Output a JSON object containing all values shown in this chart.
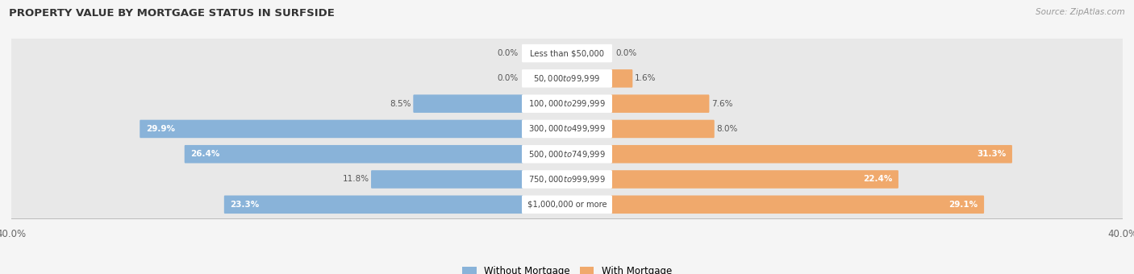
{
  "title": "PROPERTY VALUE BY MORTGAGE STATUS IN SURFSIDE",
  "source": "Source: ZipAtlas.com",
  "categories": [
    "Less than $50,000",
    "$50,000 to $99,999",
    "$100,000 to $299,999",
    "$300,000 to $499,999",
    "$500,000 to $749,999",
    "$750,000 to $999,999",
    "$1,000,000 or more"
  ],
  "without_mortgage": [
    0.0,
    0.0,
    8.5,
    29.9,
    26.4,
    11.8,
    23.3
  ],
  "with_mortgage": [
    0.0,
    1.6,
    7.6,
    8.0,
    31.3,
    22.4,
    29.1
  ],
  "color_without": "#89b3d9",
  "color_with": "#f0a96c",
  "xlim": 40.0,
  "legend_without": "Without Mortgage",
  "legend_with": "With Mortgage",
  "bg_row_color": "#e8e8e8",
  "bg_fig_color": "#f5f5f5"
}
